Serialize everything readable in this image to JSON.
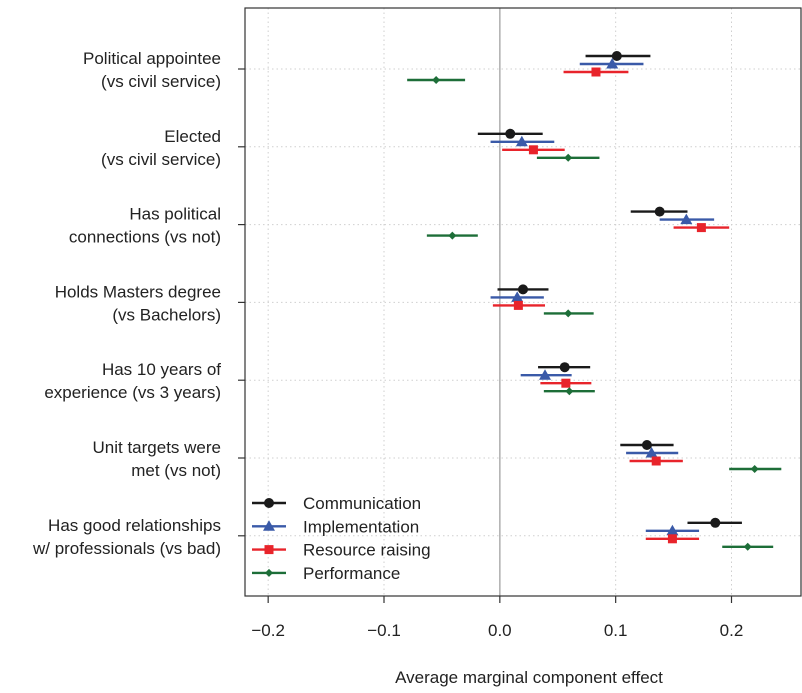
{
  "chart_data": {
    "type": "scatter",
    "subtype": "coefficient-plot",
    "xlabel": "Average marginal component effect",
    "xlim": [
      -0.22,
      0.26
    ],
    "xticks": [
      -0.2,
      -0.1,
      0.0,
      0.1,
      0.2
    ],
    "xtick_labels": [
      "−0.2",
      "−0.1",
      "0.0",
      "0.1",
      "0.2"
    ],
    "reference_line": 0,
    "grid": true,
    "legend_position": "bottom-left",
    "categories": [
      [
        "Political appointee",
        "(vs civil service)"
      ],
      [
        "Elected",
        "(vs civil service)"
      ],
      [
        "Has political",
        "connections (vs not)"
      ],
      [
        "Holds Masters degree",
        "(vs Bachelors)"
      ],
      [
        "Has 10 years of",
        "experience (vs 3 years)"
      ],
      [
        "Unit targets were",
        "met (vs not)"
      ],
      [
        "Has good relationships",
        "w/ professionals (vs bad)"
      ]
    ],
    "series": [
      {
        "name": "Communication",
        "color": "#1a1a1a",
        "marker": "circle",
        "estimates": [
          0.101,
          0.009,
          0.138,
          0.02,
          0.056,
          0.127,
          0.186
        ],
        "ci_low": [
          0.074,
          -0.019,
          0.113,
          -0.002,
          0.033,
          0.104,
          0.162
        ],
        "ci_high": [
          0.13,
          0.037,
          0.162,
          0.042,
          0.078,
          0.15,
          0.209
        ]
      },
      {
        "name": "Implementation",
        "color": "#3a5aa8",
        "marker": "triangle",
        "estimates": [
          0.097,
          0.019,
          0.161,
          0.015,
          0.039,
          0.131,
          0.149
        ],
        "ci_low": [
          0.069,
          -0.008,
          0.138,
          -0.008,
          0.018,
          0.109,
          0.126
        ],
        "ci_high": [
          0.124,
          0.047,
          0.185,
          0.038,
          0.062,
          0.154,
          0.172
        ]
      },
      {
        "name": "Resource raising",
        "color": "#e8242b",
        "marker": "square",
        "estimates": [
          0.083,
          0.029,
          0.174,
          0.016,
          0.057,
          0.135,
          0.149
        ],
        "ci_low": [
          0.055,
          0.002,
          0.15,
          -0.006,
          0.035,
          0.112,
          0.126
        ],
        "ci_high": [
          0.111,
          0.056,
          0.198,
          0.039,
          0.079,
          0.158,
          0.172
        ]
      },
      {
        "name": "Performance",
        "color": "#1d6e38",
        "marker": "diamond",
        "estimates": [
          -0.055,
          0.059,
          -0.041,
          0.059,
          0.06,
          0.22,
          0.214
        ],
        "ci_low": [
          -0.08,
          0.032,
          -0.063,
          0.038,
          0.038,
          0.198,
          0.192
        ],
        "ci_high": [
          -0.03,
          0.086,
          -0.019,
          0.081,
          0.082,
          0.243,
          0.236
        ]
      }
    ]
  }
}
